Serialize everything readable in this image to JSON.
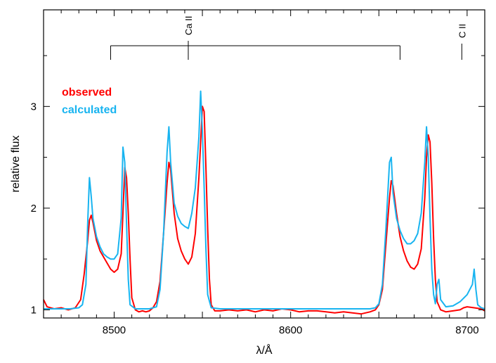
{
  "chart_data": {
    "type": "line",
    "xlabel": "λ/Å",
    "ylabel": "relative flux",
    "xlim": [
      8460,
      8710
    ],
    "ylim": [
      0.92,
      3.95
    ],
    "xticks": [
      {
        "value": 8500,
        "label": "8500"
      },
      {
        "value": 8600,
        "label": "8600"
      },
      {
        "value": 8700,
        "label": "8700"
      }
    ],
    "yticks": [
      {
        "value": 1,
        "label": "1"
      },
      {
        "value": 2,
        "label": "2"
      },
      {
        "value": 3,
        "label": "3"
      }
    ],
    "line_markers": [
      {
        "label": "Ca II",
        "group": [
          8498,
          8542,
          8662
        ],
        "center": 8542
      },
      {
        "label": "C II",
        "group": [
          8697
        ],
        "center": 8697
      }
    ],
    "series": [
      {
        "name": "observed",
        "color": "#ff0000",
        "points": [
          [
            8460,
            1.1
          ],
          [
            8462,
            1.03
          ],
          [
            8466,
            1.01
          ],
          [
            8470,
            1.02
          ],
          [
            8474,
            1.0
          ],
          [
            8478,
            1.02
          ],
          [
            8481,
            1.1
          ],
          [
            8483,
            1.35
          ],
          [
            8485,
            1.68
          ],
          [
            8486,
            1.88
          ],
          [
            8487,
            1.93
          ],
          [
            8488,
            1.86
          ],
          [
            8490,
            1.68
          ],
          [
            8492,
            1.58
          ],
          [
            8494,
            1.52
          ],
          [
            8496,
            1.46
          ],
          [
            8498,
            1.4
          ],
          [
            8500,
            1.37
          ],
          [
            8502,
            1.4
          ],
          [
            8504,
            1.55
          ],
          [
            8505,
            1.95
          ],
          [
            8506,
            2.4
          ],
          [
            8507,
            2.3
          ],
          [
            8508,
            1.95
          ],
          [
            8509,
            1.5
          ],
          [
            8510,
            1.12
          ],
          [
            8512,
            1.0
          ],
          [
            8514,
            0.98
          ],
          [
            8516,
            0.99
          ],
          [
            8518,
            0.98
          ],
          [
            8520,
            0.99
          ],
          [
            8522,
            1.02
          ],
          [
            8524,
            1.08
          ],
          [
            8526,
            1.28
          ],
          [
            8528,
            1.75
          ],
          [
            8530,
            2.25
          ],
          [
            8531,
            2.45
          ],
          [
            8532,
            2.38
          ],
          [
            8534,
            1.95
          ],
          [
            8536,
            1.7
          ],
          [
            8538,
            1.58
          ],
          [
            8540,
            1.5
          ],
          [
            8542,
            1.45
          ],
          [
            8544,
            1.52
          ],
          [
            8546,
            1.75
          ],
          [
            8548,
            2.3
          ],
          [
            8549,
            2.65
          ],
          [
            8550,
            3.0
          ],
          [
            8551,
            2.95
          ],
          [
            8552,
            2.4
          ],
          [
            8553,
            1.8
          ],
          [
            8554,
            1.3
          ],
          [
            8555,
            1.05
          ],
          [
            8557,
            0.99
          ],
          [
            8560,
            0.99
          ],
          [
            8565,
            1.0
          ],
          [
            8570,
            0.99
          ],
          [
            8575,
            1.0
          ],
          [
            8580,
            0.98
          ],
          [
            8585,
            1.0
          ],
          [
            8590,
            0.99
          ],
          [
            8595,
            1.01
          ],
          [
            8600,
            1.0
          ],
          [
            8605,
            0.98
          ],
          [
            8610,
            0.99
          ],
          [
            8615,
            0.99
          ],
          [
            8620,
            0.98
          ],
          [
            8625,
            0.97
          ],
          [
            8630,
            0.98
          ],
          [
            8635,
            0.97
          ],
          [
            8640,
            0.96
          ],
          [
            8645,
            0.98
          ],
          [
            8648,
            1.0
          ],
          [
            8650,
            1.05
          ],
          [
            8652,
            1.2
          ],
          [
            8654,
            1.65
          ],
          [
            8656,
            2.1
          ],
          [
            8657,
            2.27
          ],
          [
            8658,
            2.22
          ],
          [
            8660,
            1.95
          ],
          [
            8662,
            1.72
          ],
          [
            8664,
            1.58
          ],
          [
            8666,
            1.48
          ],
          [
            8668,
            1.42
          ],
          [
            8670,
            1.4
          ],
          [
            8672,
            1.45
          ],
          [
            8674,
            1.6
          ],
          [
            8676,
            2.1
          ],
          [
            8677,
            2.5
          ],
          [
            8678,
            2.72
          ],
          [
            8679,
            2.65
          ],
          [
            8680,
            2.25
          ],
          [
            8681,
            1.7
          ],
          [
            8682,
            1.3
          ],
          [
            8683,
            1.08
          ],
          [
            8685,
            1.0
          ],
          [
            8688,
            0.98
          ],
          [
            8692,
            0.99
          ],
          [
            8696,
            1.0
          ],
          [
            8698,
            1.02
          ],
          [
            8700,
            1.03
          ],
          [
            8704,
            1.02
          ],
          [
            8708,
            1.01
          ],
          [
            8710,
            0.99
          ]
        ]
      },
      {
        "name": "calculated",
        "color": "#18b4f0",
        "points": [
          [
            8460,
            1.01
          ],
          [
            8465,
            1.01
          ],
          [
            8470,
            1.01
          ],
          [
            8475,
            1.01
          ],
          [
            8480,
            1.02
          ],
          [
            8482,
            1.05
          ],
          [
            8484,
            1.25
          ],
          [
            8485,
            1.85
          ],
          [
            8486,
            2.3
          ],
          [
            8487,
            2.12
          ],
          [
            8488,
            1.9
          ],
          [
            8490,
            1.72
          ],
          [
            8492,
            1.62
          ],
          [
            8494,
            1.55
          ],
          [
            8496,
            1.52
          ],
          [
            8498,
            1.5
          ],
          [
            8500,
            1.5
          ],
          [
            8502,
            1.55
          ],
          [
            8504,
            1.9
          ],
          [
            8505,
            2.6
          ],
          [
            8506,
            2.45
          ],
          [
            8507,
            1.85
          ],
          [
            8508,
            1.3
          ],
          [
            8509,
            1.05
          ],
          [
            8512,
            1.01
          ],
          [
            8516,
            1.01
          ],
          [
            8520,
            1.01
          ],
          [
            8524,
            1.03
          ],
          [
            8526,
            1.2
          ],
          [
            8528,
            1.75
          ],
          [
            8530,
            2.55
          ],
          [
            8531,
            2.8
          ],
          [
            8532,
            2.45
          ],
          [
            8534,
            2.05
          ],
          [
            8536,
            1.92
          ],
          [
            8538,
            1.85
          ],
          [
            8540,
            1.82
          ],
          [
            8542,
            1.8
          ],
          [
            8544,
            1.95
          ],
          [
            8546,
            2.2
          ],
          [
            8548,
            2.7
          ],
          [
            8549,
            3.15
          ],
          [
            8550,
            2.75
          ],
          [
            8551,
            2.2
          ],
          [
            8552,
            1.6
          ],
          [
            8553,
            1.15
          ],
          [
            8555,
            1.02
          ],
          [
            8560,
            1.01
          ],
          [
            8570,
            1.01
          ],
          [
            8580,
            1.01
          ],
          [
            8590,
            1.01
          ],
          [
            8600,
            1.01
          ],
          [
            8610,
            1.01
          ],
          [
            8620,
            1.01
          ],
          [
            8630,
            1.01
          ],
          [
            8640,
            1.01
          ],
          [
            8645,
            1.01
          ],
          [
            8648,
            1.02
          ],
          [
            8650,
            1.06
          ],
          [
            8652,
            1.25
          ],
          [
            8654,
            1.8
          ],
          [
            8656,
            2.45
          ],
          [
            8657,
            2.5
          ],
          [
            8658,
            2.15
          ],
          [
            8660,
            1.9
          ],
          [
            8662,
            1.78
          ],
          [
            8664,
            1.7
          ],
          [
            8666,
            1.65
          ],
          [
            8668,
            1.65
          ],
          [
            8670,
            1.68
          ],
          [
            8672,
            1.75
          ],
          [
            8674,
            1.95
          ],
          [
            8676,
            2.45
          ],
          [
            8677,
            2.8
          ],
          [
            8678,
            2.5
          ],
          [
            8679,
            1.9
          ],
          [
            8680,
            1.4
          ],
          [
            8681,
            1.15
          ],
          [
            8682,
            1.06
          ],
          [
            8683,
            1.25
          ],
          [
            8684,
            1.3
          ],
          [
            8685,
            1.1
          ],
          [
            8688,
            1.03
          ],
          [
            8692,
            1.04
          ],
          [
            8696,
            1.08
          ],
          [
            8700,
            1.15
          ],
          [
            8703,
            1.25
          ],
          [
            8704,
            1.4
          ],
          [
            8705,
            1.2
          ],
          [
            8706,
            1.05
          ],
          [
            8708,
            1.02
          ],
          [
            8710,
            1.01
          ]
        ]
      }
    ]
  }
}
